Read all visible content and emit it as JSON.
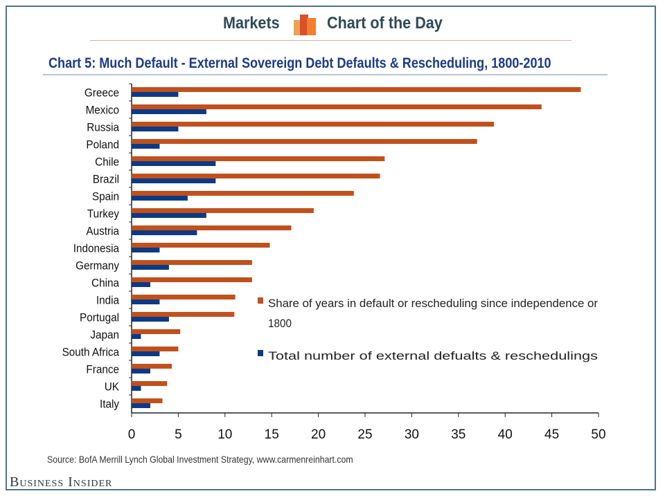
{
  "header": {
    "left": "Markets",
    "right": "Chart of the Day"
  },
  "colors": {
    "orange": "#c1501c",
    "blue": "#0b3a86",
    "title": "#1c3a8c",
    "frame": "#4d7386"
  },
  "chart_data": {
    "type": "bar",
    "orientation": "horizontal",
    "title": "Chart 5: Much Default - External Sovereign Debt Defaults & Rescheduling, 1800-2010",
    "categories": [
      "Greece",
      "Mexico",
      "Russia",
      "Poland",
      "Chile",
      "Brazil",
      "Spain",
      "Turkey",
      "Austria",
      "Indonesia",
      "Germany",
      "China",
      "India",
      "Portugal",
      "Japan",
      "South Africa",
      "France",
      "UK",
      "Italy"
    ],
    "series": [
      {
        "name": "Share of years in default or rescheduling since independence or 1800",
        "color": "#c1501c",
        "values": [
          48.1,
          43.9,
          38.8,
          37.0,
          27.1,
          26.6,
          23.8,
          19.5,
          17.1,
          14.8,
          12.9,
          12.9,
          11.1,
          11.0,
          5.2,
          5.0,
          4.3,
          3.8,
          3.3
        ]
      },
      {
        "name": "Total number of external defualts & reschedulings",
        "color": "#0b3a86",
        "values": [
          5,
          8,
          5,
          3,
          9,
          9,
          6,
          8,
          7,
          3,
          4,
          2,
          3,
          4,
          1,
          3,
          2,
          1,
          2
        ]
      }
    ],
    "xlim": [
      0,
      50
    ],
    "xticks": [
      "0",
      "5",
      "10",
      "15",
      "20",
      "25",
      "30",
      "35",
      "40",
      "45",
      "50"
    ],
    "grid": false,
    "legend_position": "center-right",
    "legend_lines": [
      [
        "Share of years in default or rescheduling since independence or",
        "1800"
      ],
      [
        "Total number of external defualts & reschedulings"
      ]
    ]
  },
  "source": "Source: BofA Merrill Lynch Global Investment Strategy, www.carmenreinhart.com",
  "brand": "Business Insider"
}
